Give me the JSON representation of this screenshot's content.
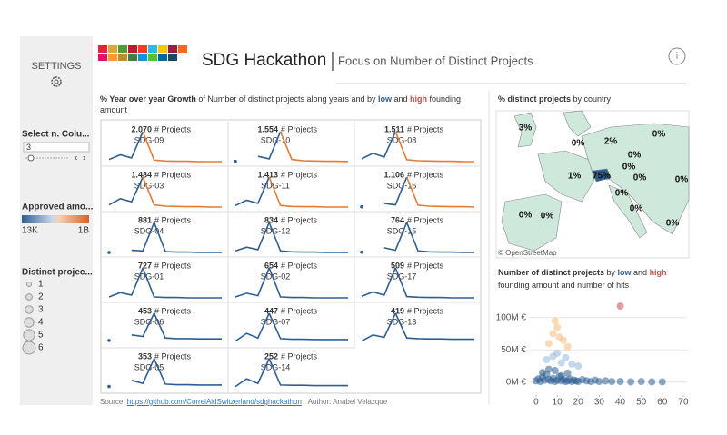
{
  "settings": {
    "title": "SETTINGS",
    "select_columns": {
      "label": "Select n. Colu...",
      "value": "3"
    },
    "approved_amount": {
      "label": "Approved amo...",
      "min": "13K",
      "max": "1B"
    },
    "distinct_projects": {
      "label": "Distinct projec...",
      "legend": [
        "1",
        "2",
        "3",
        "4",
        "5",
        "6"
      ]
    }
  },
  "header": {
    "title": "SDG Hackathon",
    "subtitle": "Focus on Number of Distinct Projects",
    "info": "i"
  },
  "growth": {
    "title_parts": [
      "% Year over year Growth",
      " of  Number of distinct projects along years and by ",
      "low",
      " and ",
      "high",
      " founding amount"
    ],
    "unit": "# Projects",
    "color": "#2e5e93",
    "panels": [
      {
        "count": "2.070",
        "sdg": "SDG-09",
        "values": [
          10,
          25,
          15,
          100,
          8,
          5,
          4,
          4,
          3,
          3,
          3
        ],
        "tail_color": "#e07b39"
      },
      {
        "count": "1.554",
        "sdg": "SDG-10",
        "values": [
          4,
          null,
          20,
          12,
          100,
          10,
          6,
          5,
          4,
          4,
          3
        ],
        "tail_color": "#e07b39"
      },
      {
        "count": "1.511",
        "sdg": "SDG-08",
        "values": [
          12,
          30,
          18,
          100,
          9,
          6,
          5,
          4,
          4,
          3,
          3
        ],
        "tail_color": "#e07b39"
      },
      {
        "count": "1.484",
        "sdg": "SDG-03",
        "values": [
          10,
          30,
          20,
          100,
          10,
          6,
          5,
          4,
          4,
          3,
          3
        ],
        "tail_color": "#e07b39"
      },
      {
        "count": "1.413",
        "sdg": "SDG-11",
        "values": [
          8,
          25,
          15,
          100,
          8,
          5,
          4,
          4,
          3,
          3,
          3
        ],
        "tail_color": "#e07b39"
      },
      {
        "count": "1.106",
        "sdg": "SDG-16",
        "values": [
          4,
          null,
          15,
          10,
          100,
          9,
          6,
          5,
          4,
          4,
          3
        ],
        "tail_color": "#e07b39"
      },
      {
        "count": "881",
        "sdg": "SDG-04",
        "values": [
          3,
          null,
          10,
          8,
          100,
          6,
          4,
          4,
          3,
          3,
          3
        ]
      },
      {
        "count": "834",
        "sdg": "SDG-12",
        "values": [
          8,
          20,
          12,
          100,
          8,
          5,
          4,
          4,
          3,
          3,
          3
        ]
      },
      {
        "count": "764",
        "sdg": "SDG-15",
        "values": [
          4,
          null,
          18,
          10,
          100,
          8,
          5,
          4,
          4,
          3,
          3
        ]
      },
      {
        "count": "727",
        "sdg": "SDG-01",
        "values": [
          6,
          20,
          12,
          100,
          6,
          4,
          4,
          3,
          3,
          3,
          3
        ]
      },
      {
        "count": "654",
        "sdg": "SDG-02",
        "values": [
          6,
          18,
          10,
          100,
          6,
          4,
          4,
          3,
          3,
          3,
          3
        ]
      },
      {
        "count": "509",
        "sdg": "SDG-17",
        "values": [
          8,
          22,
          12,
          100,
          7,
          5,
          4,
          4,
          3,
          3,
          3
        ]
      },
      {
        "count": "453",
        "sdg": "SDG-06",
        "values": [
          12,
          null,
          30,
          25,
          100,
          20,
          18,
          18,
          17,
          17,
          17
        ]
      },
      {
        "count": "447",
        "sdg": "SDG-07",
        "values": [
          10,
          35,
          20,
          100,
          18,
          16,
          16,
          15,
          15,
          15,
          15
        ]
      },
      {
        "count": "419",
        "sdg": "SDG-13",
        "values": [
          10,
          30,
          22,
          100,
          20,
          18,
          17,
          17,
          16,
          16,
          16
        ]
      },
      {
        "count": "353",
        "sdg": "SDG-05",
        "values": [
          10,
          null,
          30,
          20,
          100,
          18,
          16,
          16,
          15,
          15,
          15
        ]
      },
      {
        "count": "252",
        "sdg": "SDG-14",
        "values": [
          10,
          35,
          20,
          100,
          15,
          14,
          14,
          13,
          13,
          13,
          13
        ]
      }
    ]
  },
  "map": {
    "title": "% distinct projects",
    "title_suffix": " by country",
    "labels": [
      "3%",
      "0%",
      "2%",
      "0%",
      "0%",
      "0%",
      "1%",
      "75%",
      "0%",
      "0%",
      "0%",
      "0%",
      "0%",
      "0%",
      "0%"
    ],
    "attribution": "© OpenStreetMap"
  },
  "chart_data": {
    "type": "scatter",
    "title_parts": [
      "Number of distinct projects",
      " by ",
      "low",
      " and ",
      "high",
      " founding amount and number of hits"
    ],
    "xlim": [
      -3,
      72
    ],
    "ylim": [
      -20000000,
      130000000
    ],
    "xticks": [
      0,
      10,
      20,
      30,
      40,
      50,
      60,
      70
    ],
    "yticks": [
      {
        "value": 0,
        "label": "0M €"
      },
      {
        "value": 50000000,
        "label": "50M €"
      },
      {
        "value": 100000000,
        "label": "100M €"
      }
    ],
    "grid": true,
    "series": [
      {
        "color": "#2e5e93",
        "x": [
          0,
          1,
          2,
          3,
          4,
          5,
          6,
          7,
          8,
          9,
          10,
          11,
          12,
          13,
          14,
          15,
          16,
          17,
          18,
          19,
          20,
          22,
          24,
          26,
          28,
          30,
          33,
          36,
          40,
          45,
          50,
          55,
          60,
          3,
          6,
          9,
          12,
          15
        ],
        "y": [
          2000000,
          5000000,
          1000000,
          8000000,
          3000000,
          12000000,
          4000000,
          2000000,
          6000000,
          1000000,
          3000000,
          9000000,
          2000000,
          4000000,
          1000000,
          2000000,
          5000000,
          1000000,
          3000000,
          2000000,
          1000000,
          4000000,
          2000000,
          1000000,
          3000000,
          1000000,
          2000000,
          1000000,
          1000000,
          500000,
          1000000,
          500000,
          500000,
          15000000,
          20000000,
          18000000,
          10000000,
          14000000
        ]
      },
      {
        "color": "#8fb8de",
        "x": [
          5,
          8,
          10,
          12,
          14,
          17,
          20
        ],
        "y": [
          35000000,
          40000000,
          45000000,
          30000000,
          38000000,
          28000000,
          25000000
        ]
      },
      {
        "color": "#f4b97a",
        "x": [
          6,
          8,
          10,
          13,
          15,
          9,
          11
        ],
        "y": [
          60000000,
          75000000,
          85000000,
          65000000,
          55000000,
          95000000,
          70000000
        ]
      },
      {
        "color": "#c0504d",
        "x": [
          40
        ],
        "y": [
          118000000
        ]
      }
    ]
  },
  "footer": {
    "source_label": "Source: ",
    "source_link": "https://github.com/CorrelAidSwitzerland/sdghackathon",
    "author": "Author: Anabel Velazque"
  }
}
